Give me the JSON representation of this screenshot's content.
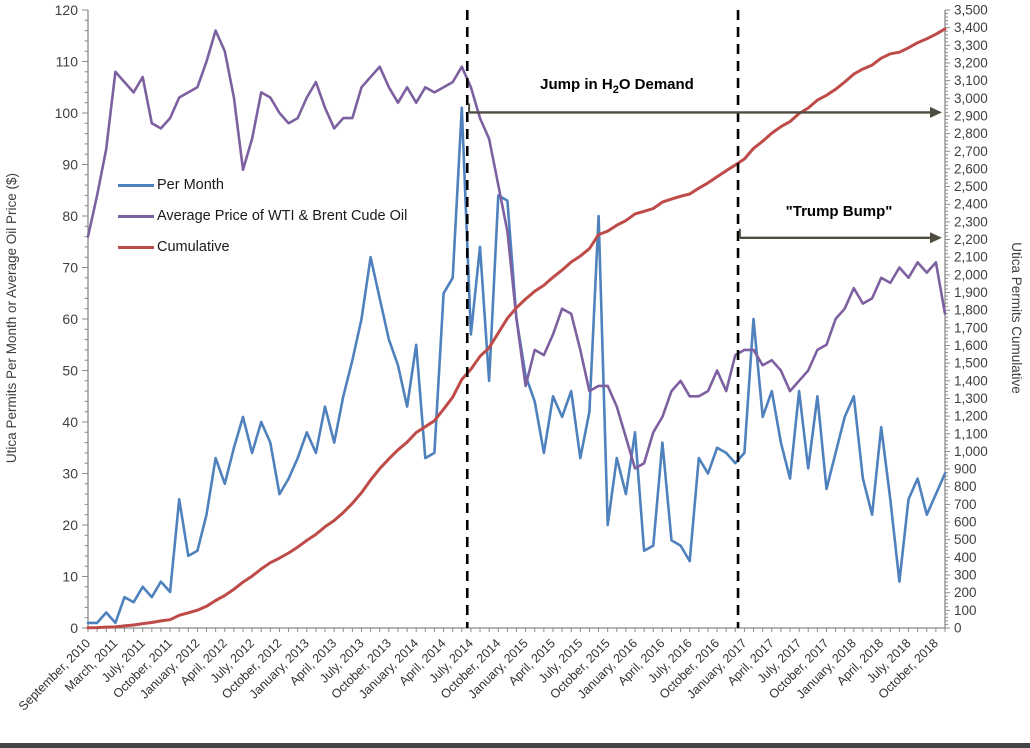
{
  "page": {
    "background": "#ffffff",
    "bottom_edge_color": "#454545"
  },
  "chart_data": {
    "type": "line",
    "title": "",
    "grid": false,
    "y_left": {
      "label": "Utica Permits Per Month or Average Oil Price ($)",
      "min": 0,
      "max": 120,
      "step": 10,
      "tick_labels": [
        "0",
        "10",
        "20",
        "30",
        "40",
        "50",
        "60",
        "70",
        "80",
        "90",
        "100",
        "110",
        "120"
      ]
    },
    "y_right": {
      "label": "Utica Permits Cumulative",
      "min": 0,
      "max": 3500,
      "step": 100,
      "tick_labels": [
        "0",
        "100",
        "200",
        "300",
        "400",
        "500",
        "600",
        "700",
        "800",
        "900",
        "1,000",
        "1,100",
        "1,200",
        "1,300",
        "1,400",
        "1,500",
        "1,600",
        "1,700",
        "1,800",
        "1,900",
        "2,000",
        "2,100",
        "2,200",
        "2,300",
        "2,400",
        "2,500",
        "2,600",
        "2,700",
        "2,800",
        "2,900",
        "3,000",
        "3,100",
        "3,200",
        "3,300",
        "3,400",
        "3,500"
      ]
    },
    "x": {
      "tick_label_every": 3,
      "tick_labels": [
        "September, 2010",
        "March, 2011",
        "July, 2011",
        "October, 2011",
        "January, 2012",
        "April, 2012",
        "July, 2012",
        "October, 2012",
        "January, 2013",
        "April, 2013",
        "July, 2013",
        "October, 2013",
        "January, 2014",
        "April, 2014",
        "July, 2014",
        "October, 2014",
        "January, 2015",
        "April, 2015",
        "July, 2015",
        "October, 2015",
        "January, 2016",
        "April, 2016",
        "July, 2016",
        "October, 2016",
        "January, 2017",
        "April, 2017",
        "July, 2017",
        "October, 2017",
        "January, 2018",
        "April, 2018",
        "July, 2018",
        "October, 2018"
      ],
      "categories": [
        "Sep 2010",
        "Nov 2010",
        "Jan 2011",
        "Mar 2011",
        "May 2011",
        "Jun 2011",
        "Jul 2011",
        "Aug 2011",
        "Sep 2011",
        "Oct 2011",
        "Nov 2011",
        "Dec 2011",
        "Jan 2012",
        "Feb 2012",
        "Mar 2012",
        "Apr 2012",
        "May 2012",
        "Jun 2012",
        "Jul 2012",
        "Aug 2012",
        "Sep 2012",
        "Oct 2012",
        "Nov 2012",
        "Dec 2012",
        "Jan 2013",
        "Feb 2013",
        "Mar 2013",
        "Apr 2013",
        "May 2013",
        "Jun 2013",
        "Jul 2013",
        "Aug 2013",
        "Sep 2013",
        "Oct 2013",
        "Nov 2013",
        "Dec 2013",
        "Jan 2014",
        "Feb 2014",
        "Mar 2014",
        "Apr 2014",
        "May 2014",
        "Jun 2014",
        "Jul 2014",
        "Aug 2014",
        "Sep 2014",
        "Oct 2014",
        "Nov 2014",
        "Dec 2014",
        "Jan 2015",
        "Feb 2015",
        "Mar 2015",
        "Apr 2015",
        "May 2015",
        "Jun 2015",
        "Jul 2015",
        "Aug 2015",
        "Sep 2015",
        "Oct 2015",
        "Nov 2015",
        "Dec 2015",
        "Jan 2016",
        "Feb 2016",
        "Mar 2016",
        "Apr 2016",
        "May 2016",
        "Jun 2016",
        "Jul 2016",
        "Aug 2016",
        "Sep 2016",
        "Oct 2016",
        "Nov 2016",
        "Dec 2016",
        "Jan 2017",
        "Feb 2017",
        "Mar 2017",
        "Apr 2017",
        "May 2017",
        "Jun 2017",
        "Jul 2017",
        "Aug 2017",
        "Sep 2017",
        "Oct 2017",
        "Nov 2017",
        "Dec 2017",
        "Jan 2018",
        "Feb 2018",
        "Mar 2018",
        "Apr 2018",
        "May 2018",
        "Jun 2018",
        "Jul 2018",
        "Aug 2018",
        "Sep 2018",
        "Oct 2018",
        "Nov 2018"
      ]
    },
    "series": [
      {
        "name": "Per Month",
        "axis": "left",
        "color": "#4F81BD",
        "values": [
          1,
          1,
          3,
          1,
          6,
          5,
          8,
          6,
          9,
          7,
          25,
          14,
          15,
          22,
          33,
          28,
          35,
          41,
          34,
          40,
          36,
          26,
          29,
          33,
          38,
          34,
          43,
          36,
          45,
          52,
          60,
          72,
          64,
          56,
          51,
          43,
          55,
          33,
          34,
          65,
          68,
          101,
          57,
          74,
          48,
          84,
          83,
          60,
          49,
          44,
          34,
          45,
          41,
          46,
          33,
          42,
          80,
          20,
          33,
          26,
          38,
          15,
          16,
          36,
          17,
          16,
          13,
          33,
          30,
          35,
          34,
          32,
          34,
          60,
          41,
          46,
          36,
          29,
          46,
          31,
          45,
          27,
          34,
          41,
          45,
          29,
          22,
          39,
          25,
          9,
          25,
          29,
          22,
          26,
          30
        ]
      },
      {
        "name": "Average Price of WTI & Brent Cude Oil",
        "axis": "left",
        "color": "#7D60A0",
        "values": [
          76,
          84,
          93,
          108,
          106,
          104,
          107,
          98,
          97,
          99,
          103,
          104,
          105,
          110,
          116,
          112,
          103,
          89,
          95,
          104,
          103,
          100,
          98,
          99,
          103,
          106,
          101,
          97,
          99,
          99,
          105,
          107,
          109,
          105,
          102,
          105,
          102,
          105,
          104,
          105,
          106,
          109,
          105,
          99,
          95,
          86,
          77,
          60,
          47,
          54,
          53,
          57,
          62,
          61,
          54,
          46,
          47,
          47,
          43,
          37,
          31,
          32,
          38,
          41,
          46,
          48,
          45,
          45,
          46,
          50,
          46,
          53,
          54,
          54,
          51,
          52,
          50,
          46,
          48,
          50,
          54,
          55,
          60,
          62,
          66,
          63,
          64,
          68,
          67,
          70,
          68,
          71,
          69,
          71,
          61
        ]
      },
      {
        "name": "Cumulative",
        "axis": "right",
        "color": "#BE4B48",
        "values": [
          1,
          2,
          5,
          6,
          12,
          17,
          25,
          31,
          40,
          47,
          72,
          86,
          101,
          123,
          156,
          184,
          219,
          260,
          294,
          334,
          370,
          396,
          425,
          458,
          496,
          530,
          573,
          609,
          654,
          706,
          766,
          838,
          902,
          958,
          1009,
          1052,
          1107,
          1140,
          1174,
          1239,
          1307,
          1408,
          1465,
          1539,
          1587,
          1671,
          1754,
          1814,
          1863,
          1907,
          1941,
          1986,
          2027,
          2073,
          2106,
          2148,
          2228,
          2248,
          2281,
          2307,
          2345,
          2360,
          2376,
          2412,
          2429,
          2445,
          2458,
          2491,
          2521,
          2556,
          2590,
          2622,
          2656,
          2716,
          2757,
          2803,
          2839,
          2868,
          2914,
          2945,
          2990,
          3017,
          3051,
          3092,
          3137,
          3166,
          3188,
          3227,
          3252,
          3261,
          3286,
          3315,
          3337,
          3363,
          3393
        ]
      }
    ],
    "legend": {
      "position": "upper-left-inside"
    },
    "vlines": [
      {
        "style": "dashed",
        "color": "#000000",
        "category": 41.6
      },
      {
        "style": "dashed",
        "color": "#000000",
        "category": 71.3
      }
    ],
    "annotations": [
      {
        "text_prefix": "Jump in H",
        "text_sub": "2",
        "text_suffix": "O Demand",
        "arrow_color": "#4e4d40",
        "arrow_y_right": 2920,
        "arrow_from_category": 41.8,
        "arrow_to": "right-edge"
      },
      {
        "text": "\"Trump Bump\"",
        "arrow_color": "#4e4d40",
        "arrow_y_right": 2210,
        "arrow_from_category": 71.5,
        "arrow_to": "right-edge"
      }
    ]
  }
}
